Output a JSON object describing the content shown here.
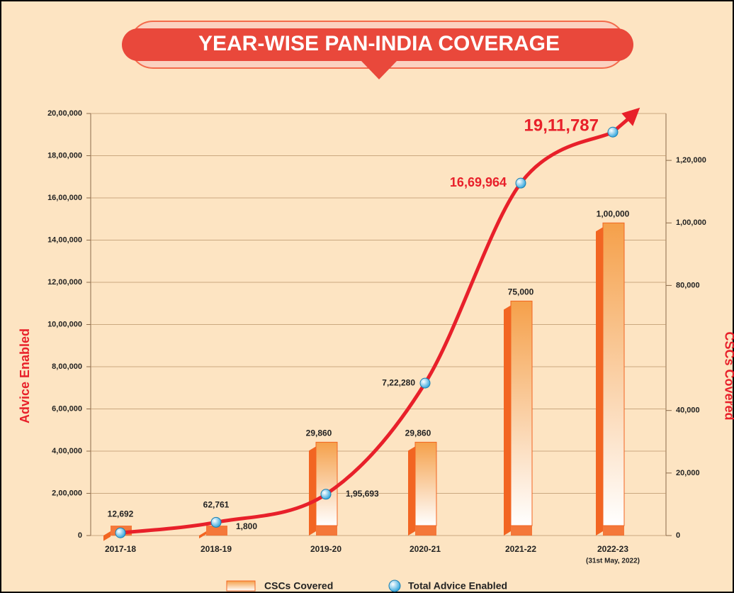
{
  "chart_data": {
    "type": "bar-line",
    "title": "YEAR-WISE PAN-INDIA COVERAGE",
    "y_label": "Advice Enabled",
    "y2_label": "CSCs Covered",
    "categories": [
      "2017-18",
      "2018-19",
      "2019-20",
      "2020-21",
      "2021-22",
      "2022-23"
    ],
    "category_note": "(31st May, 2022)",
    "series": [
      {
        "name": "CSCs Covered",
        "type": "bar",
        "axis": "y2",
        "color": "#f26522",
        "values": [
          1000,
          1800,
          29860,
          29860,
          75000,
          100000
        ],
        "value_labels": [
          null,
          "1,800",
          "29,860",
          "29,860",
          "75,000",
          "1,00,000"
        ]
      },
      {
        "name": "Total Advice Enabled",
        "type": "line",
        "axis": "y",
        "color": "#e8202a",
        "values": [
          12692,
          62761,
          195693,
          722280,
          1669964,
          1911787
        ],
        "value_labels": [
          "12,692",
          "62,761",
          "1,95,693",
          "7,22,280",
          "16,69,964",
          "19,11,787"
        ]
      }
    ],
    "ylim": [
      0,
      2000000
    ],
    "yticks": [
      0,
      {
        "value": 200000,
        "label": "2,00,000"
      },
      {
        "value": 400000,
        "label": "4,00,000"
      },
      {
        "value": 600000,
        "label": "6,00,000"
      },
      {
        "value": 800000,
        "label": "8,00,000"
      },
      {
        "value": 1000000,
        "label": "10,00,000"
      },
      {
        "value": 1200000,
        "label": "12,00,000"
      },
      {
        "value": 1400000,
        "label": "14,00,000"
      },
      {
        "value": 1600000,
        "label": "16,00,000"
      },
      {
        "value": 1800000,
        "label": "18,00,000"
      },
      {
        "value": 2000000,
        "label": "20,00,000"
      }
    ],
    "y2lim": [
      0,
      135000
    ],
    "y2ticks": [
      0,
      {
        "value": 20000,
        "label": "20,000"
      },
      {
        "value": 40000,
        "label": "40,000"
      },
      {
        "value": 80000,
        "label": "80,000"
      },
      {
        "value": 100000,
        "label": "1,00,000"
      },
      {
        "value": 120000,
        "label": "1,20,000"
      }
    ],
    "grid": true
  }
}
